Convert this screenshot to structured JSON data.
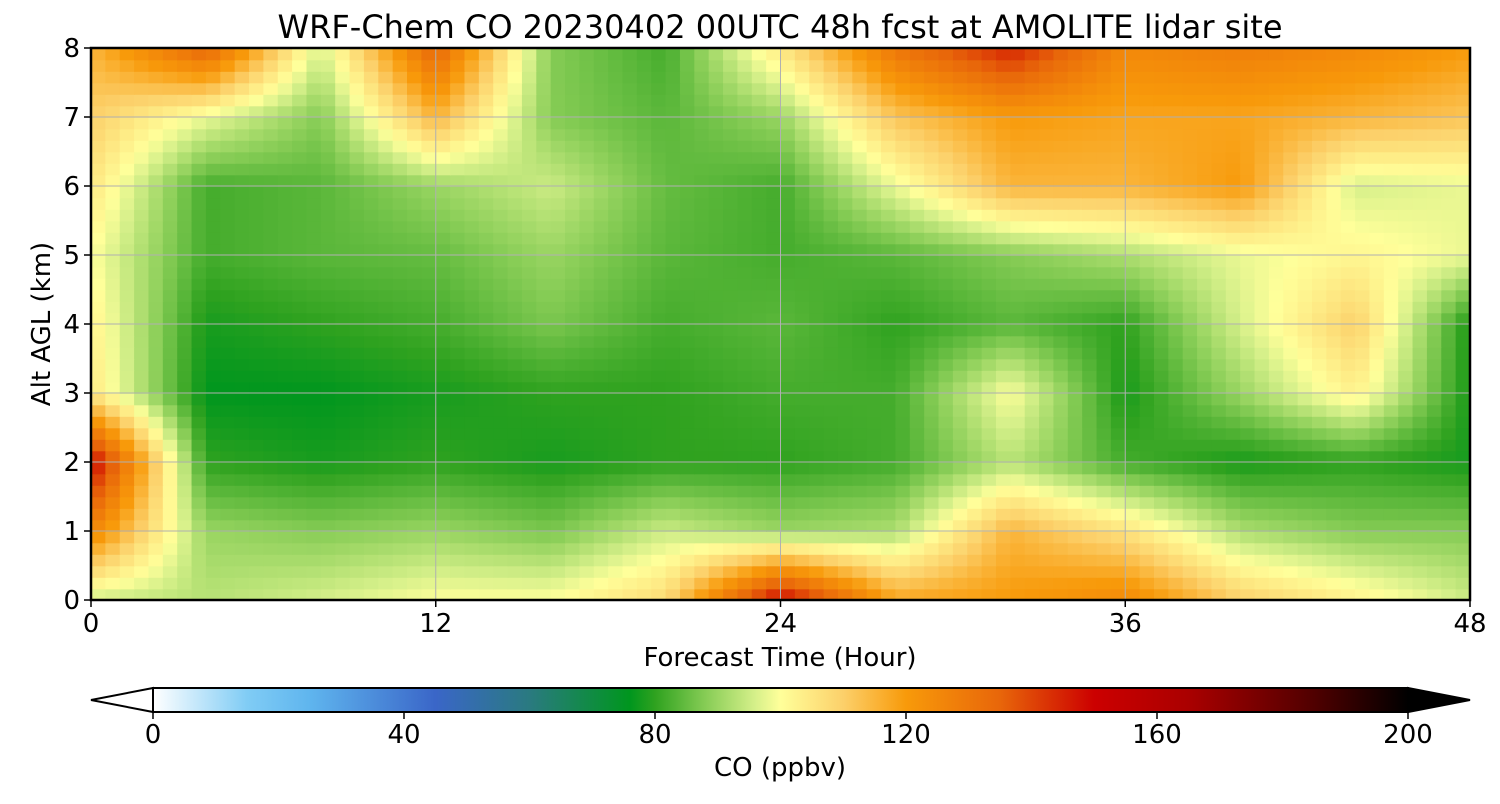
{
  "chart_data": {
    "type": "heatmap",
    "title": "WRF-Chem CO  20230402 00UTC 48h fcst at AMOLITE lidar site",
    "xlabel": "Forecast Time (Hour)",
    "ylabel": "Alt AGL (km)",
    "xlim": [
      0,
      48
    ],
    "ylim": [
      0,
      8
    ],
    "xticks": [
      0,
      12,
      24,
      36,
      48
    ],
    "yticks": [
      0,
      1,
      2,
      3,
      4,
      5,
      6,
      7,
      8
    ],
    "grid": true,
    "x": [
      0,
      4,
      8,
      12,
      16,
      20,
      24,
      28,
      32,
      36,
      40,
      44,
      48
    ],
    "y": [
      0,
      1,
      2,
      3,
      4,
      5,
      6,
      7,
      8
    ],
    "z": [
      [
        95,
        93,
        96,
        100,
        100,
        108,
        150,
        118,
        120,
        125,
        110,
        103,
        95
      ],
      [
        125,
        90,
        88,
        90,
        87,
        95,
        90,
        92,
        115,
        106,
        92,
        88,
        88
      ],
      [
        150,
        80,
        78,
        80,
        78,
        80,
        80,
        82,
        93,
        82,
        78,
        80,
        78
      ],
      [
        105,
        76,
        76,
        78,
        80,
        80,
        82,
        82,
        100,
        78,
        90,
        103,
        78
      ],
      [
        103,
        78,
        80,
        82,
        87,
        82,
        84,
        80,
        84,
        80,
        96,
        110,
        78
      ],
      [
        100,
        82,
        84,
        85,
        90,
        84,
        82,
        84,
        88,
        92,
        98,
        102,
        98
      ],
      [
        105,
        82,
        84,
        90,
        95,
        85,
        82,
        98,
        115,
        115,
        120,
        96,
        98
      ],
      [
        110,
        98,
        88,
        115,
        88,
        84,
        90,
        112,
        120,
        118,
        118,
        115,
        112
      ],
      [
        115,
        135,
        96,
        135,
        88,
        82,
        105,
        130,
        145,
        125,
        128,
        125,
        120
      ]
    ],
    "colorbar": {
      "label": "CO  (ppbv)",
      "range": [
        0,
        200
      ],
      "ticks": [
        0,
        40,
        80,
        120,
        160,
        200
      ],
      "extend": "both",
      "orientation": "horizontal",
      "placement": "bottom"
    },
    "colors": {
      "stops": [
        [
          0,
          "#ffffff"
        ],
        [
          15,
          "#80ccf5"
        ],
        [
          25,
          "#5fb5ee"
        ],
        [
          45,
          "#3a66c8"
        ],
        [
          60,
          "#2a7a80"
        ],
        [
          76,
          "#00961e"
        ],
        [
          80,
          "#2fa21f"
        ],
        [
          88,
          "#86cc55"
        ],
        [
          96,
          "#d6f08a"
        ],
        [
          100,
          "#ffff9a"
        ],
        [
          110,
          "#fcd06a"
        ],
        [
          120,
          "#f89a0a"
        ],
        [
          135,
          "#e8660a"
        ],
        [
          150,
          "#cc0000"
        ],
        [
          165,
          "#aa0000"
        ],
        [
          185,
          "#500000"
        ],
        [
          200,
          "#000000"
        ]
      ],
      "grid": "#b0b0b0",
      "frame": "#000000"
    }
  }
}
